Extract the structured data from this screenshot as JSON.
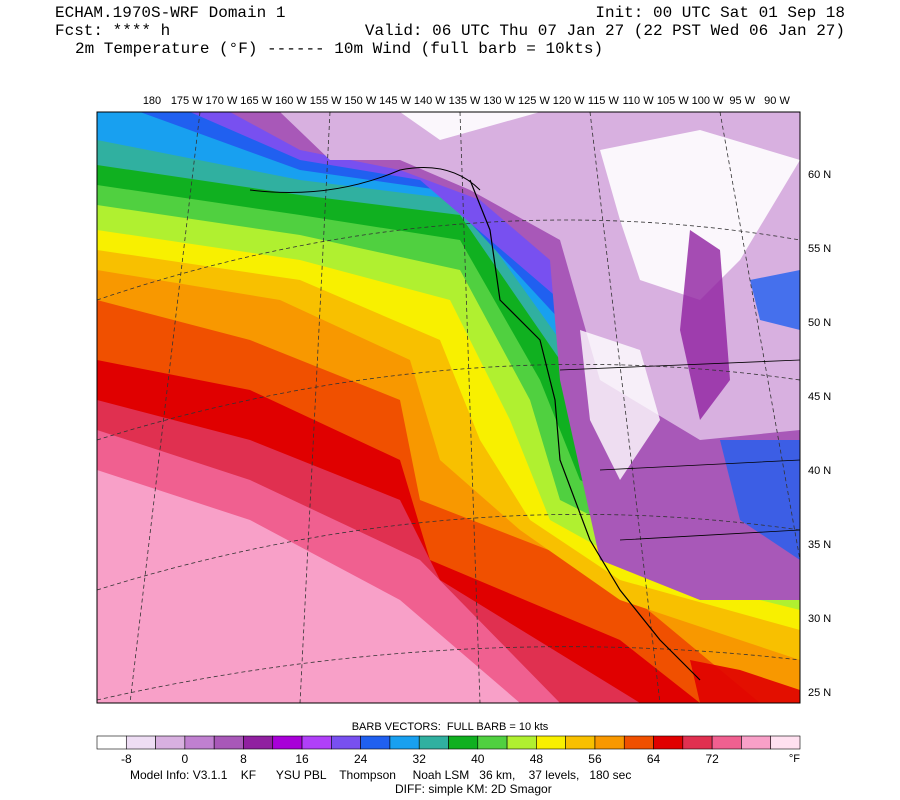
{
  "header": {
    "title": "ECHAM.1970S-WRF Domain 1",
    "init": "Init: 00 UTC Sat 01 Sep 18",
    "forecast": "Fcst: **** h",
    "valid": "Valid: 06 UTC Thu 07 Jan 27 (22 PST Wed 06 Jan 27)",
    "fields": "2m Temperature (°F) ------ 10m Wind (full barb = 10kts)"
  },
  "map": {
    "longitude_labels": [
      "180",
      "175 W",
      "170 W",
      "165 W",
      "160 W",
      "155 W",
      "150 W",
      "145 W",
      "140 W",
      "135 W",
      "130 W",
      "125 W",
      "120 W",
      "115 W",
      "110 W",
      "105 W",
      "100 W",
      "95 W",
      "90 W"
    ],
    "latitude_labels": [
      "60 N",
      "55 N",
      "50 N",
      "45 N",
      "40 N",
      "35 N",
      "30 N",
      "25 N"
    ]
  },
  "legend": {
    "caption": "BARB VECTORS:  FULL BARB = 10 kts",
    "colors": [
      "#ffffff",
      "#eeddf4",
      "#d8b0e0",
      "#c080d0",
      "#a858b8",
      "#9020a0",
      "#a800d8",
      "#b040f8",
      "#7850f0",
      "#2060f0",
      "#18a0f0",
      "#30b0a0",
      "#10b020",
      "#50d040",
      "#b0f030",
      "#f8f000",
      "#f8c000",
      "#f89800",
      "#f05000",
      "#e00000",
      "#e03050",
      "#f06090",
      "#f8a0c8",
      "#ffe0f0"
    ],
    "tick_labels": [
      -8,
      0,
      8,
      16,
      24,
      32,
      40,
      48,
      56,
      64,
      72
    ],
    "unit": "°F"
  },
  "footer": {
    "model_info": "Model Info: V3.1.1    KF      YSU PBL    Thompson     Noah LSM   36 km,    37 levels,   180 sec",
    "diff": "DIFF: simple KM: 2D Smagor"
  }
}
